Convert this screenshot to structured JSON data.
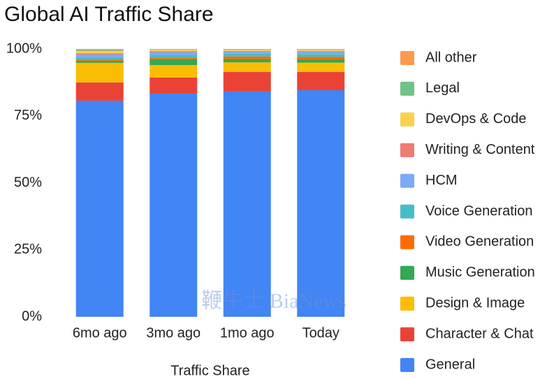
{
  "chart_data": {
    "type": "stacked_bar",
    "title": "Global AI Traffic Share",
    "x_label": "Traffic Share",
    "watermark": "鞭牛士 BiaNews",
    "categories": [
      "6mo ago",
      "3mo ago",
      "1mo ago",
      "Today"
    ],
    "ylim": [
      0,
      100
    ],
    "yticks": [
      {
        "value": 0,
        "label": "0%"
      },
      {
        "value": 25,
        "label": "25%"
      },
      {
        "value": 50,
        "label": "50%"
      },
      {
        "value": 75,
        "label": "75%"
      },
      {
        "value": 100,
        "label": "100%"
      }
    ],
    "grid": false,
    "legend": "right",
    "series": [
      {
        "name": "General",
        "color": "#4285f4",
        "values": [
          80.7,
          83.3,
          84.1,
          84.6
        ]
      },
      {
        "name": "Character & Chat",
        "color": "#ea4335",
        "values": [
          6.8,
          6.0,
          7.3,
          6.8
        ]
      },
      {
        "name": "Design & Image",
        "color": "#fbbc04",
        "values": [
          7.3,
          4.7,
          3.6,
          3.5
        ]
      },
      {
        "name": "Music Generation",
        "color": "#34a853",
        "values": [
          0.8,
          2.3,
          1.2,
          1.2
        ]
      },
      {
        "name": "Video Generation",
        "color": "#ff6d01",
        "values": [
          0.5,
          0.5,
          1.0,
          1.0
        ]
      },
      {
        "name": "Voice Generation",
        "color": "#46bdc6",
        "values": [
          0.8,
          1.0,
          1.0,
          1.0
        ]
      },
      {
        "name": "HCM",
        "color": "#7baaf7",
        "values": [
          1.0,
          1.0,
          0.8,
          0.9
        ]
      },
      {
        "name": "Writing & Content",
        "color": "#f07b72",
        "values": [
          0.5,
          0.4,
          0.3,
          0.3
        ]
      },
      {
        "name": "DevOps & Code",
        "color": "#fcd04f",
        "values": [
          0.8,
          0.5,
          0.4,
          0.4
        ]
      },
      {
        "name": "Legal",
        "color": "#71c287",
        "values": [
          0.3,
          0.2,
          0.2,
          0.2
        ]
      },
      {
        "name": "All other",
        "color": "#ff994d",
        "values": [
          0.5,
          0.1,
          0.1,
          0.1
        ]
      }
    ]
  }
}
